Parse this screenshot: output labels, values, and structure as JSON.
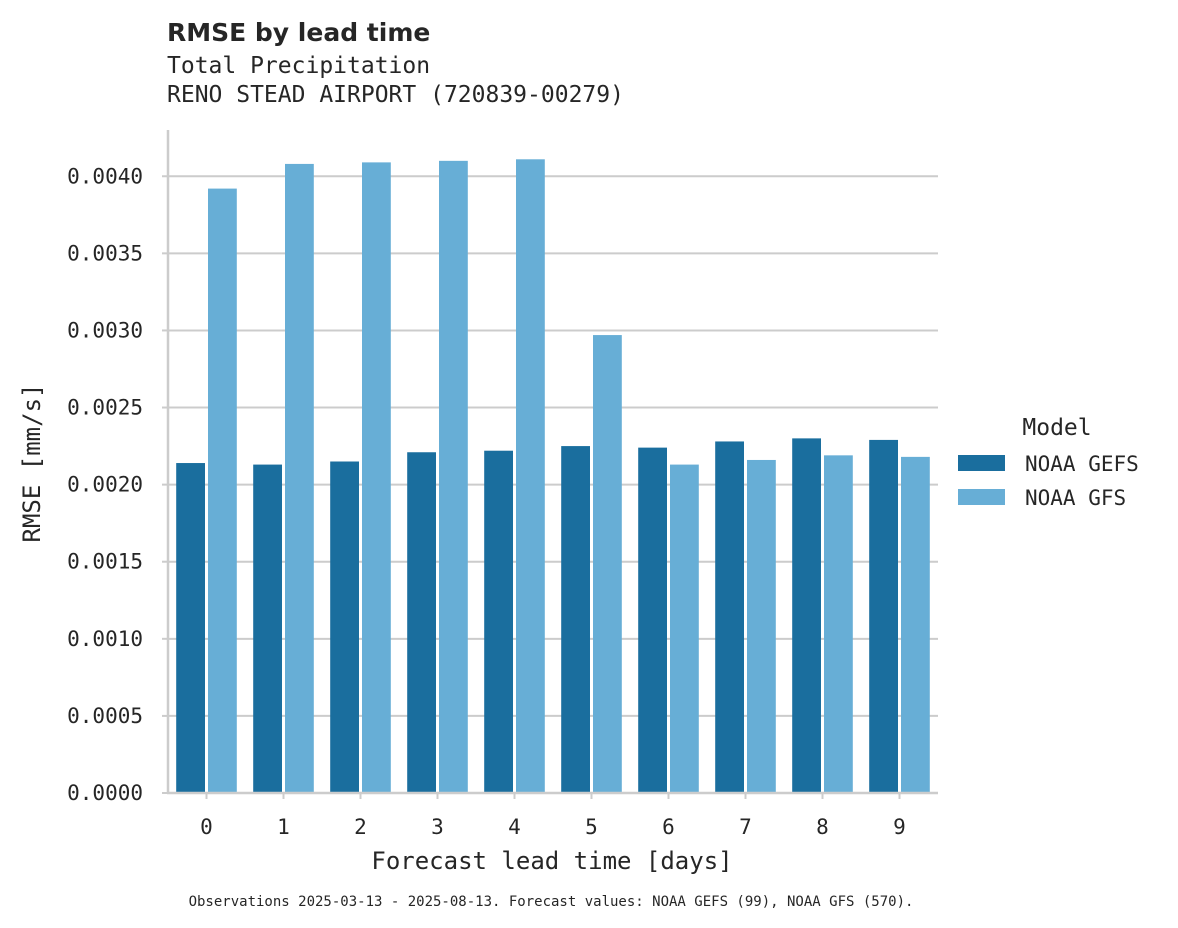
{
  "chart_data": {
    "type": "bar",
    "title": "RMSE by lead time",
    "subtitle_lines": [
      "Total Precipitation",
      "RENO STEAD AIRPORT (720839-00279)"
    ],
    "xlabel": "Forecast lead time [days]",
    "ylabel": "RMSE [mm/s]",
    "categories": [
      "0",
      "1",
      "2",
      "3",
      "4",
      "5",
      "6",
      "7",
      "8",
      "9"
    ],
    "ylim": [
      0,
      0.0043
    ],
    "yticks": [
      0.0,
      0.0005,
      0.001,
      0.0015,
      0.002,
      0.0025,
      0.003,
      0.0035,
      0.004
    ],
    "ytick_labels": [
      "0.0000",
      "0.0005",
      "0.0010",
      "0.0015",
      "0.0020",
      "0.0025",
      "0.0030",
      "0.0035",
      "0.0040"
    ],
    "grid": true,
    "legend": {
      "title": "Model",
      "placement": "right"
    },
    "series": [
      {
        "name": "NOAA GEFS",
        "color": "#1a6e9e",
        "values": [
          0.00214,
          0.00213,
          0.00215,
          0.00221,
          0.00222,
          0.00225,
          0.00224,
          0.00228,
          0.0023,
          0.00229
        ]
      },
      {
        "name": "NOAA GFS",
        "color": "#67aed6",
        "values": [
          0.00392,
          0.00408,
          0.00409,
          0.0041,
          0.00411,
          0.00297,
          0.00213,
          0.00216,
          0.00219,
          0.00218
        ]
      }
    ],
    "footnote": "Observations 2025-03-13 - 2025-08-13. Forecast values: NOAA GEFS (99), NOAA GFS (570)."
  }
}
